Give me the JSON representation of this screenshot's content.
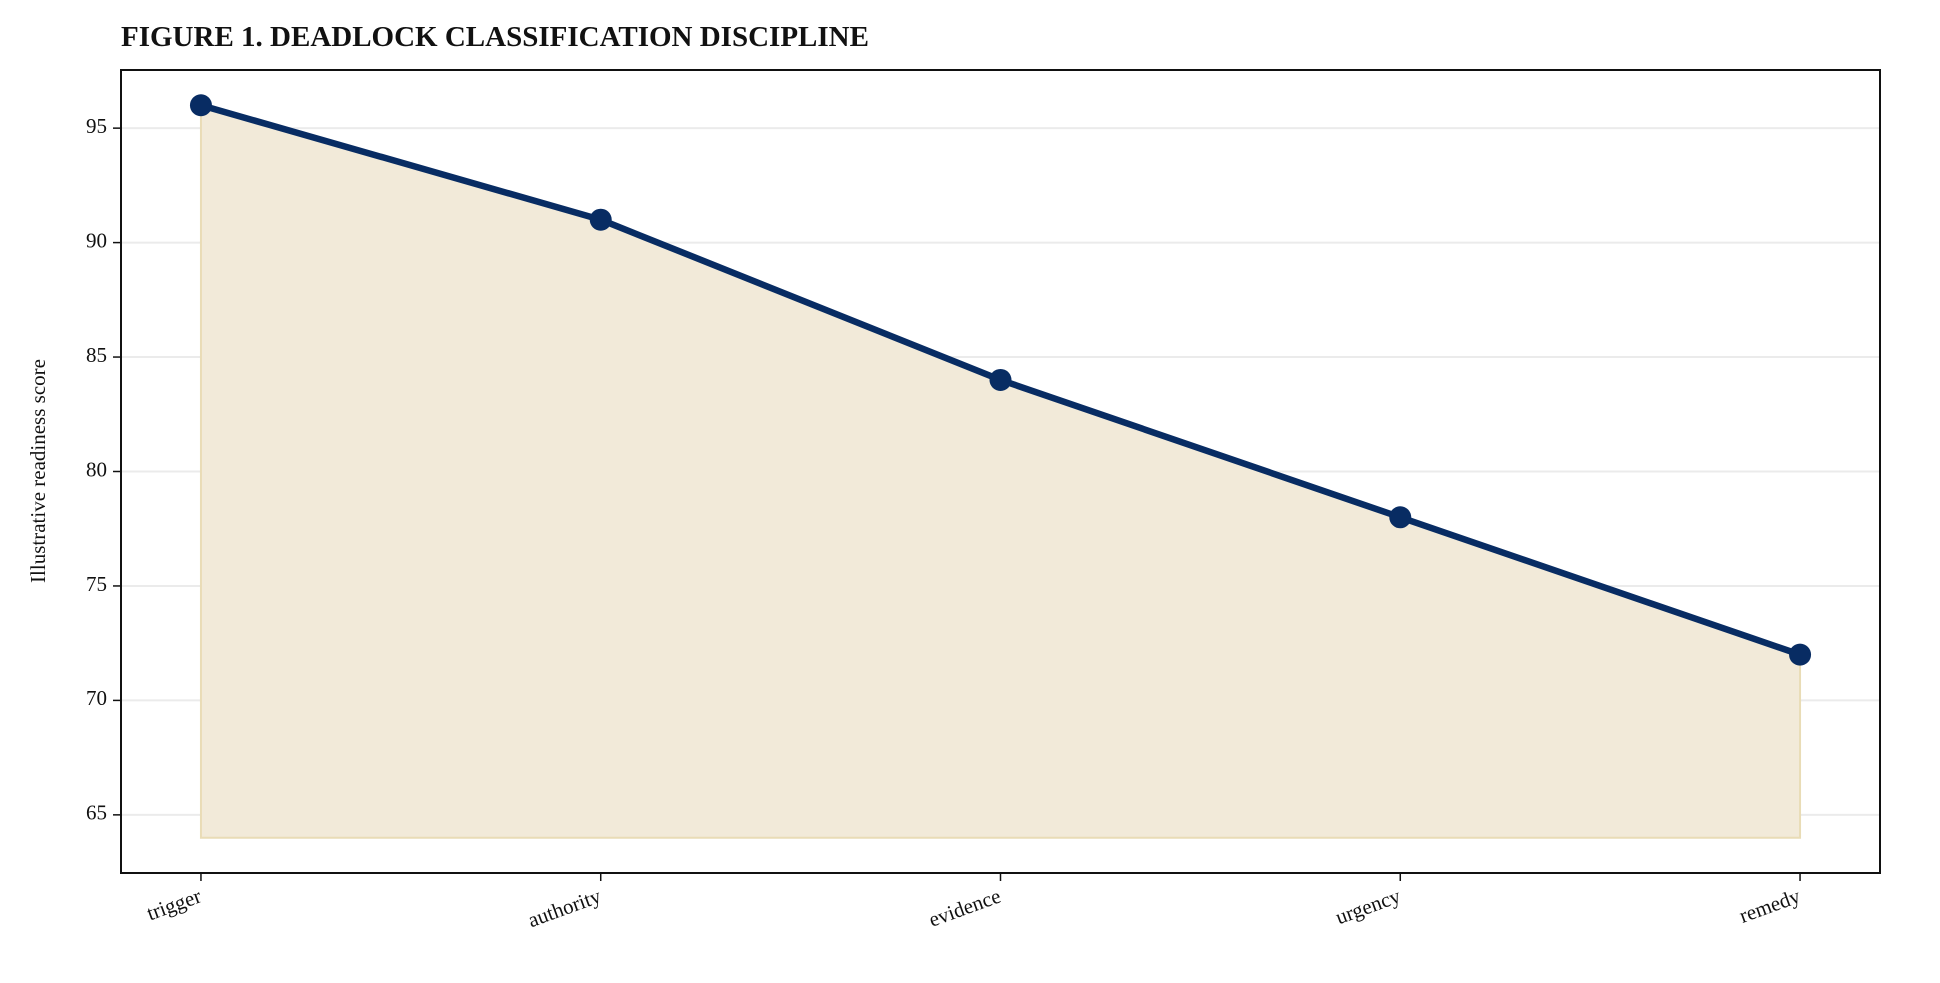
{
  "chart_data": {
    "type": "line",
    "title": "FIGURE 1. DEADLOCK CLASSIFICATION DISCIPLINE",
    "y_label": "Illustrative readiness score",
    "categories": [
      "trigger",
      "authority",
      "evidence",
      "urgency",
      "remedy"
    ],
    "values": [
      96,
      91,
      84,
      78,
      72
    ],
    "color": "#082c63",
    "fill_color": "#f2ead9",
    "fill_baseline": 64,
    "ylim": [
      62.46,
      97.54
    ],
    "yticks": [
      65,
      70,
      75,
      80,
      85,
      90,
      95
    ],
    "grid": true
  }
}
